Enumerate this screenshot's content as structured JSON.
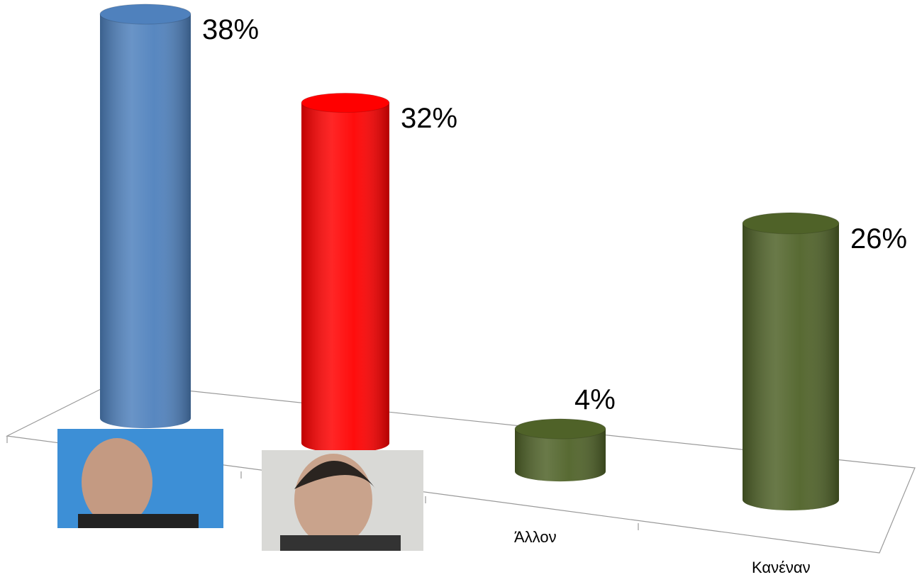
{
  "chart_data": {
    "type": "bar",
    "categories": [
      null,
      null,
      "Άλλον",
      "Κανέναν"
    ],
    "values": [
      38,
      32,
      4,
      26
    ],
    "value_labels": [
      "38%",
      "32%",
      "4%",
      "26%"
    ],
    "colors": [
      "#4f81bd",
      "#ff0000",
      "#4f6228",
      "#4f6228"
    ]
  }
}
